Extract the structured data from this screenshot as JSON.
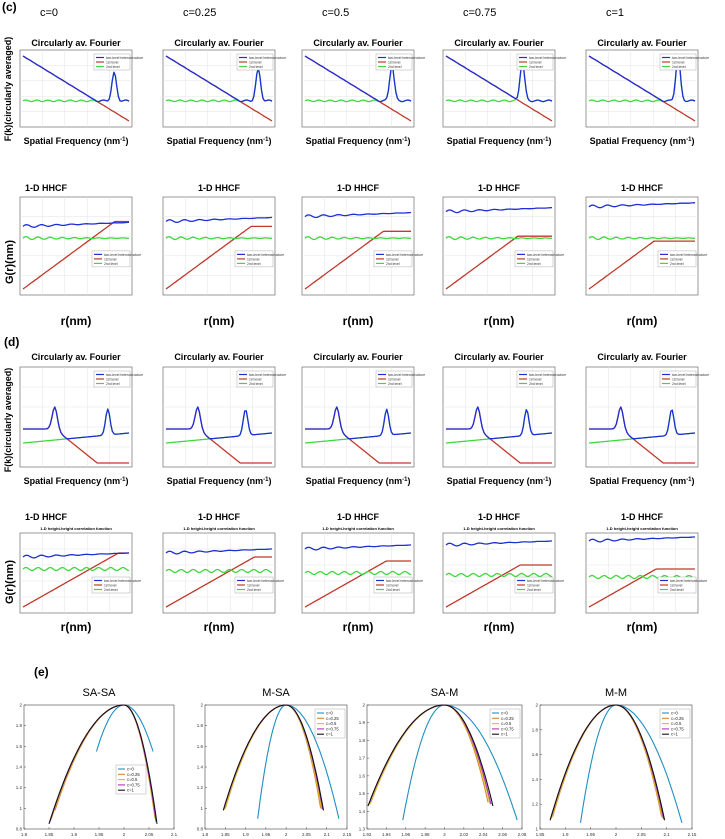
{
  "colors": {
    "blue": "#1f2fd6",
    "red": "#c0392b",
    "green": "#3fd83f",
    "curve_blue": "#1f8fc2",
    "curve_orange": "#d98b2b",
    "curve_yellow": "#d6c61f",
    "curve_purple": "#b832c8",
    "curve_black": "#111111"
  },
  "panels": {
    "c": "(c)",
    "d": "(d)",
    "e": "(e)"
  },
  "c_values": [
    "c=0",
    "c=0.25",
    "c=0.5",
    "c=0.75",
    "c=1"
  ],
  "fourier_title": "Circularly av. Fourier",
  "hhcf_title": "1-D HHCF",
  "hhcf_subtitle": "1-D height-height correlation function",
  "fourier_ylabel": "F(k)(circularly averaged)",
  "fourier_xlabel": "Spatial Frequency (nm",
  "fourier_xlabel_sup": "-1",
  "fourier_xlabel_close": ")",
  "hhcf_ylabel": "G(r)(nm)",
  "hhcf_xlabel": "r(nm)",
  "legend": [
    "two-level heterostructure",
    "1st level",
    "2nd level"
  ],
  "e_titles": [
    "SA-SA",
    "M-SA",
    "SA-M",
    "M-M"
  ],
  "e_legend": [
    "c=0",
    "c=0.25",
    "c=0.5",
    "c=0.75",
    "c=1"
  ],
  "chart_data": [
    {
      "type": "line",
      "panel": "c",
      "title": "Circularly av. Fourier",
      "subplots": 5,
      "xscale": "log",
      "yscale": "log",
      "xlabel": "Spatial Frequency (nm-1)",
      "ylabel": "F(k)(circularly averaged)",
      "series": [
        {
          "name": "two-level heterostructure"
        },
        {
          "name": "1st level"
        },
        {
          "name": "2nd level"
        }
      ]
    },
    {
      "type": "line",
      "panel": "c",
      "title": "1-D HHCF",
      "subplots": 5,
      "xscale": "log",
      "yscale": "log",
      "xlabel": "r(nm)",
      "ylabel": "G(r)(nm)",
      "series": [
        {
          "name": "two-level heterostructure"
        },
        {
          "name": "1st level"
        },
        {
          "name": "2nd level"
        }
      ]
    },
    {
      "type": "line",
      "panel": "d",
      "title": "Circularly av. Fourier",
      "subplots": 5,
      "xscale": "log",
      "yscale": "log",
      "xlabel": "Spatial Frequency (nm-1)",
      "ylabel": "F(k)(circularly averaged)",
      "series": [
        {
          "name": "two-level heterostructure"
        },
        {
          "name": "1st level"
        },
        {
          "name": "2nd level"
        }
      ]
    },
    {
      "type": "line",
      "panel": "d",
      "title": "1-D HHCF",
      "subplots": 5,
      "xscale": "log",
      "yscale": "log",
      "xlabel": "r(nm)",
      "ylabel": "G(r)(nm)",
      "series": [
        {
          "name": "two-level heterostructure"
        },
        {
          "name": "1st level"
        },
        {
          "name": "2nd level"
        }
      ]
    },
    {
      "type": "line",
      "panel": "e",
      "charts": [
        {
          "title": "SA-SA",
          "xlim": [
            1.8,
            2.1
          ],
          "xticks": [
            "1.8",
            "1.85",
            "1.9",
            "1.95",
            "2",
            "2.05",
            "2.1"
          ],
          "ylim": [
            0.8,
            2
          ],
          "yticks": [
            "0.8",
            "1",
            "1.2",
            "1.4",
            "1.6",
            "1.8",
            "2"
          ],
          "curves": [
            {
              "name": "c=0",
              "x0": 1.945,
              "x1": 2.058,
              "ymin": 1.55
            },
            {
              "name": "c=0.25",
              "x0": 1.862,
              "x1": 2.06,
              "ymin": 0.98
            },
            {
              "name": "c=0.5",
              "x0": 1.855,
              "x1": 2.062,
              "ymin": 0.9
            },
            {
              "name": "c=0.75",
              "x0": 1.852,
              "x1": 2.064,
              "ymin": 0.87
            },
            {
              "name": "c=1",
              "x0": 1.85,
              "x1": 2.066,
              "ymin": 0.85
            }
          ]
        },
        {
          "title": "M-SA",
          "xlim": [
            1.8,
            2.15
          ],
          "xticks": [
            "1.8",
            "1.85",
            "1.9",
            "1.95",
            "2",
            "2.05",
            "2.1",
            "2.15"
          ],
          "ylim": [
            0.8,
            2
          ],
          "yticks": [
            "0.8",
            "1",
            "1.2",
            "1.4",
            "1.6",
            "1.8",
            "2"
          ],
          "curves": [
            {
              "name": "c=0",
              "x0": 1.93,
              "x1": 2.13,
              "ymin": 0.9
            },
            {
              "name": "c=0.25",
              "x0": 1.85,
              "x1": 2.085,
              "ymin": 1.0
            },
            {
              "name": "c=0.5",
              "x0": 1.848,
              "x1": 2.088,
              "ymin": 0.99
            },
            {
              "name": "c=0.75",
              "x0": 1.846,
              "x1": 2.09,
              "ymin": 0.99
            },
            {
              "name": "c=1",
              "x0": 1.845,
              "x1": 2.092,
              "ymin": 0.98
            }
          ]
        },
        {
          "title": "SA-M",
          "xlim": [
            1.92,
            2.08
          ],
          "xticks": [
            "1.92",
            "1.94",
            "1.96",
            "1.98",
            "2",
            "2.02",
            "2.04",
            "2.06",
            "2.08"
          ],
          "ylim": [
            1.3,
            2
          ],
          "yticks": [
            "1.3",
            "1.4",
            "1.5",
            "1.6",
            "1.7",
            "1.8",
            "1.9",
            "2"
          ],
          "curves": [
            {
              "name": "c=0",
              "x0": 1.957,
              "x1": 2.075,
              "ymin": 1.35
            },
            {
              "name": "c=0.25",
              "x0": 1.924,
              "x1": 2.045,
              "ymin": 1.45
            },
            {
              "name": "c=0.5",
              "x0": 1.923,
              "x1": 2.047,
              "ymin": 1.44
            },
            {
              "name": "c=0.75",
              "x0": 1.922,
              "x1": 2.048,
              "ymin": 1.44
            },
            {
              "name": "c=1",
              "x0": 1.921,
              "x1": 2.05,
              "ymin": 1.43
            }
          ]
        },
        {
          "title": "M-M",
          "xlim": [
            1.85,
            2.15
          ],
          "xticks": [
            "1.85",
            "1.9",
            "1.95",
            "2",
            "2.05",
            "2.1",
            "2.15"
          ],
          "ylim": [
            1,
            2
          ],
          "yticks": [
            "1",
            "1.2",
            "1.4",
            "1.6",
            "1.8",
            "2"
          ],
          "curves": [
            {
              "name": "c=0",
              "x0": 1.93,
              "x1": 2.13,
              "ymin": 1.05
            },
            {
              "name": "c=0.25",
              "x0": 1.875,
              "x1": 2.09,
              "ymin": 1.1
            },
            {
              "name": "c=0.5",
              "x0": 1.873,
              "x1": 2.092,
              "ymin": 1.09
            },
            {
              "name": "c=0.75",
              "x0": 1.871,
              "x1": 2.094,
              "ymin": 1.08
            },
            {
              "name": "c=1",
              "x0": 1.87,
              "x1": 2.096,
              "ymin": 1.07
            }
          ]
        }
      ]
    }
  ]
}
